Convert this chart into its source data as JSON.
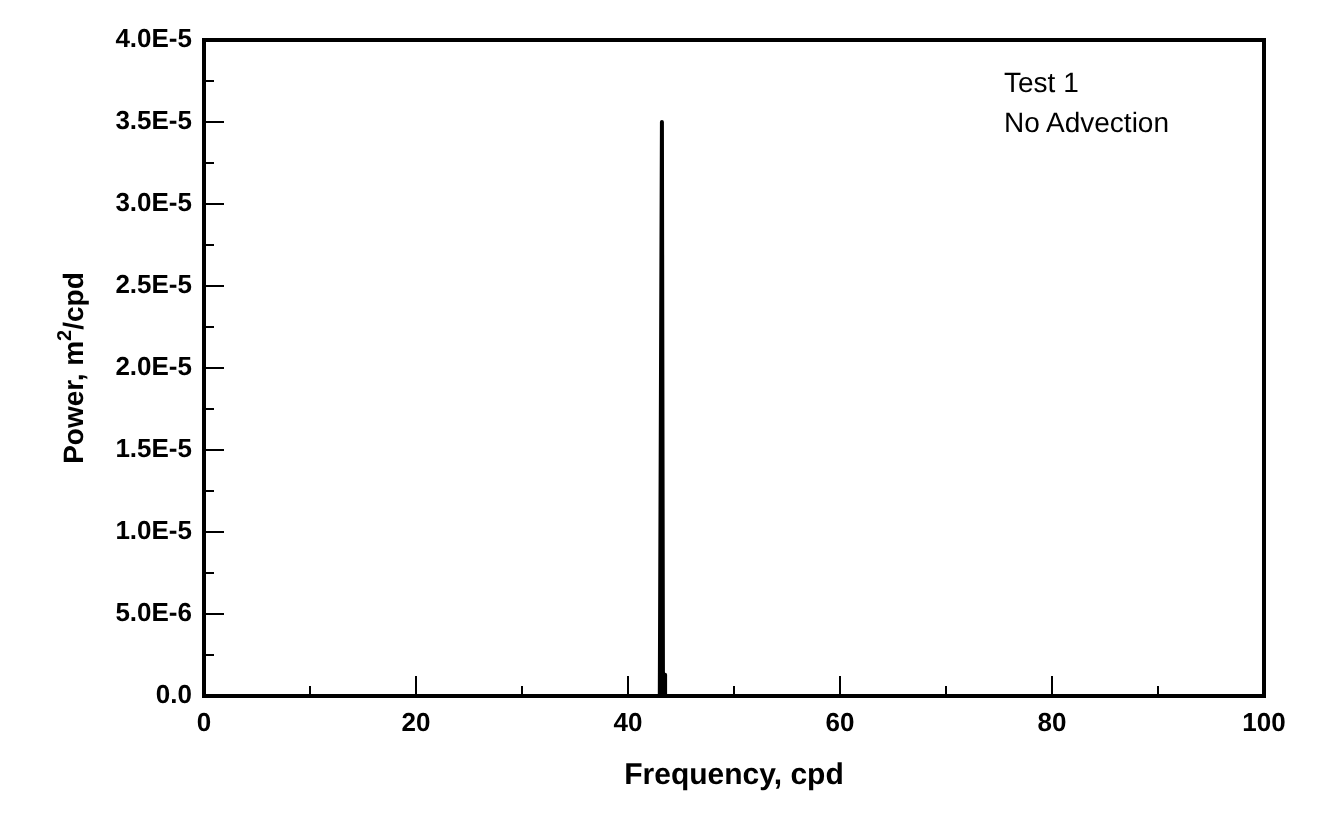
{
  "chart_data": {
    "type": "line",
    "xlabel": "Frequency, cpd",
    "ylabel": "Power, m$^{2}$/cpd",
    "annotations": [
      "Test 1",
      "No Advection"
    ],
    "x": [
      0,
      43.0,
      43.2,
      43.3,
      43.4,
      43.5,
      100
    ],
    "series": [
      {
        "color": "#000000",
        "values": [
          0,
          0,
          3.5e-05,
          0,
          1.3e-06,
          0,
          0
        ]
      }
    ],
    "xlim": [
      0,
      100
    ],
    "xticks": [
      0,
      {
        "value": 10,
        "label": null
      },
      20,
      {
        "value": 30,
        "label": null
      },
      40,
      {
        "value": 50,
        "label": null
      },
      60,
      {
        "value": 70,
        "label": null
      },
      80,
      {
        "value": 90,
        "label": null
      },
      100
    ],
    "ylim": [
      0,
      4e-05
    ],
    "yticks": [
      {
        "value": 0,
        "label": "0.0"
      },
      {
        "value": 2.5e-06,
        "label": null
      },
      {
        "value": 5e-06,
        "label": "5.0E-6"
      },
      {
        "value": 7.5e-06,
        "label": null
      },
      {
        "value": 1e-05,
        "label": "1.0E-5"
      },
      {
        "value": 1.25e-05,
        "label": null
      },
      {
        "value": 1.5e-05,
        "label": "1.5E-5"
      },
      {
        "value": 1.75e-05,
        "label": null
      },
      {
        "value": 2e-05,
        "label": "2.0E-5"
      },
      {
        "value": 2.25e-05,
        "label": null
      },
      {
        "value": 2.5e-05,
        "label": "2.5E-5"
      },
      {
        "value": 2.75e-05,
        "label": null
      },
      {
        "value": 3e-05,
        "label": "3.0E-5"
      },
      {
        "value": 3.25e-05,
        "label": null
      },
      {
        "value": 3.5e-05,
        "label": "3.5E-5"
      },
      {
        "value": 3.75e-05,
        "label": null
      },
      {
        "value": 4e-05,
        "label": "4.0E-5"
      }
    ],
    "grid": false,
    "legend": false,
    "marker": "none",
    "line_style": "solid"
  }
}
